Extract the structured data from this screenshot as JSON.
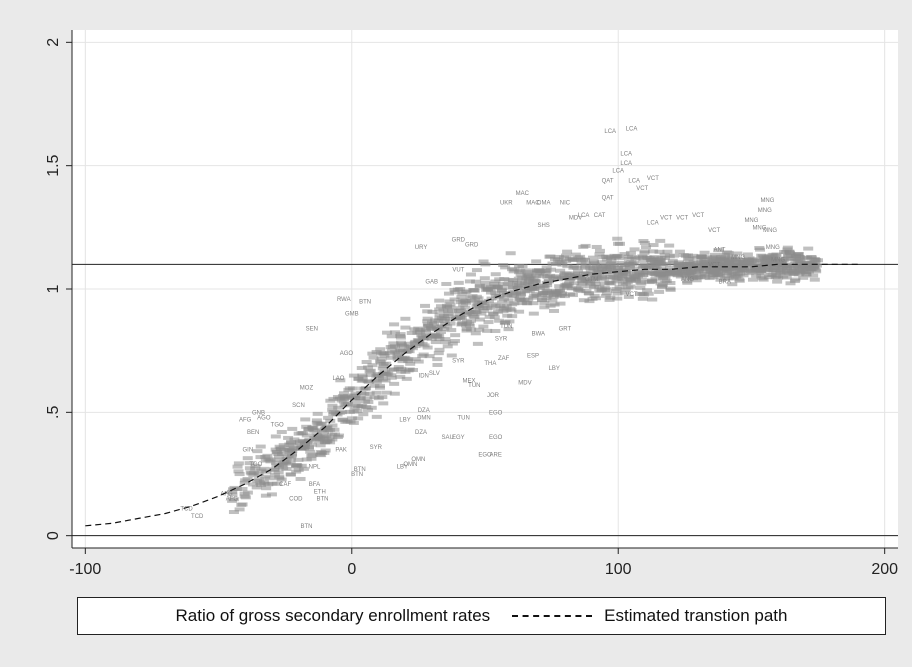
{
  "chart_data": {
    "type": "scatter",
    "title": "",
    "xlabel": "",
    "ylabel": "",
    "xlim": [
      -105,
      205
    ],
    "ylim": [
      -0.05,
      2.05
    ],
    "xticks": [
      -100,
      0,
      100,
      200
    ],
    "yticks": [
      0,
      0.5,
      1,
      1.5,
      2
    ],
    "xtick_labels": [
      "-100",
      "0",
      "100",
      "200"
    ],
    "ytick_labels": [
      "0",
      ".5",
      "1",
      "1.5",
      "2"
    ],
    "grid": true,
    "reference_lines_y": [
      0,
      1.1
    ],
    "legend": {
      "position": "bottom",
      "entries": [
        "Ratio of gross secondary enrollment rates",
        "Estimated transtion path"
      ]
    },
    "series": [
      {
        "name": "Ratio of gross secondary enrollment rates",
        "marker": "country-code",
        "color": "#7f7f7f",
        "points": [
          {
            "x": -62,
            "y": 0.11,
            "label": "TCD"
          },
          {
            "x": -58,
            "y": 0.08,
            "label": "TCD"
          },
          {
            "x": -45,
            "y": 0.15,
            "label": "AFG"
          },
          {
            "x": -47,
            "y": 0.17,
            "label": "AFG"
          },
          {
            "x": -40,
            "y": 0.47,
            "label": "AFG"
          },
          {
            "x": -35,
            "y": 0.5,
            "label": "GNB"
          },
          {
            "x": -33,
            "y": 0.48,
            "label": "AGO"
          },
          {
            "x": -37,
            "y": 0.42,
            "label": "BEN"
          },
          {
            "x": -39,
            "y": 0.35,
            "label": "GIN"
          },
          {
            "x": -36,
            "y": 0.29,
            "label": "TGO"
          },
          {
            "x": -28,
            "y": 0.45,
            "label": "TGO"
          },
          {
            "x": -17,
            "y": 0.6,
            "label": "MOZ"
          },
          {
            "x": -20,
            "y": 0.53,
            "label": "SCN"
          },
          {
            "x": -25,
            "y": 0.21,
            "label": "CAF"
          },
          {
            "x": -14,
            "y": 0.21,
            "label": "BFA"
          },
          {
            "x": -21,
            "y": 0.15,
            "label": "COD"
          },
          {
            "x": -12,
            "y": 0.18,
            "label": "ETH"
          },
          {
            "x": -14,
            "y": 0.28,
            "label": "NPL"
          },
          {
            "x": -11,
            "y": 0.15,
            "label": "BTN"
          },
          {
            "x": -17,
            "y": 0.04,
            "label": "BTN"
          },
          {
            "x": 2,
            "y": 0.25,
            "label": "BTN"
          },
          {
            "x": 3,
            "y": 0.27,
            "label": "BTN"
          },
          {
            "x": -4,
            "y": 0.35,
            "label": "PAK"
          },
          {
            "x": 9,
            "y": 0.36,
            "label": "SYR"
          },
          {
            "x": 19,
            "y": 0.28,
            "label": "LBY"
          },
          {
            "x": 22,
            "y": 0.29,
            "label": "OMN"
          },
          {
            "x": 25,
            "y": 0.31,
            "label": "OMN"
          },
          {
            "x": 20,
            "y": 0.47,
            "label": "LBY"
          },
          {
            "x": 27,
            "y": 0.48,
            "label": "OMN"
          },
          {
            "x": 26,
            "y": 0.42,
            "label": "DZA"
          },
          {
            "x": 27,
            "y": 0.51,
            "label": "DZA"
          },
          {
            "x": 36,
            "y": 0.4,
            "label": "SAU"
          },
          {
            "x": 40,
            "y": 0.4,
            "label": "EGY"
          },
          {
            "x": 42,
            "y": 0.48,
            "label": "TUN"
          },
          {
            "x": 54,
            "y": 0.4,
            "label": "EGO"
          },
          {
            "x": 50,
            "y": 0.33,
            "label": "EGO"
          },
          {
            "x": 54,
            "y": 0.33,
            "label": "ARE"
          },
          {
            "x": 54,
            "y": 0.5,
            "label": "EGO"
          },
          {
            "x": 53,
            "y": 0.57,
            "label": "JOR"
          },
          {
            "x": 65,
            "y": 0.62,
            "label": "MDV"
          },
          {
            "x": 44,
            "y": 0.63,
            "label": "MEX"
          },
          {
            "x": 46,
            "y": 0.61,
            "label": "TUN"
          },
          {
            "x": 52,
            "y": 0.7,
            "label": "THA"
          },
          {
            "x": 57,
            "y": 0.72,
            "label": "ZAF"
          },
          {
            "x": 68,
            "y": 0.73,
            "label": "ESP"
          },
          {
            "x": 76,
            "y": 0.68,
            "label": "LBY"
          },
          {
            "x": 70,
            "y": 0.82,
            "label": "BWA"
          },
          {
            "x": 31,
            "y": 0.66,
            "label": "SLV"
          },
          {
            "x": 27,
            "y": 0.65,
            "label": "IDN"
          },
          {
            "x": 40,
            "y": 0.71,
            "label": "SYR"
          },
          {
            "x": -2,
            "y": 0.74,
            "label": "AGO"
          },
          {
            "x": -5,
            "y": 0.64,
            "label": "LAO"
          },
          {
            "x": -15,
            "y": 0.84,
            "label": "SEN"
          },
          {
            "x": 5,
            "y": 0.95,
            "label": "BTN"
          },
          {
            "x": -3,
            "y": 0.96,
            "label": "RWA"
          },
          {
            "x": 0,
            "y": 0.9,
            "label": "GMB"
          },
          {
            "x": 30,
            "y": 1.03,
            "label": "GAB"
          },
          {
            "x": 40,
            "y": 1.08,
            "label": "VUT"
          },
          {
            "x": 26,
            "y": 1.17,
            "label": "URY"
          },
          {
            "x": 40,
            "y": 1.2,
            "label": "GRD"
          },
          {
            "x": 45,
            "y": 1.18,
            "label": "GRD"
          },
          {
            "x": 58,
            "y": 1.35,
            "label": "UKR"
          },
          {
            "x": 64,
            "y": 1.39,
            "label": "MAC"
          },
          {
            "x": 68,
            "y": 1.35,
            "label": "MAC"
          },
          {
            "x": 72,
            "y": 1.35,
            "label": "OMA"
          },
          {
            "x": 72,
            "y": 1.26,
            "label": "SHS"
          },
          {
            "x": 84,
            "y": 1.29,
            "label": "MDV"
          },
          {
            "x": 80,
            "y": 1.35,
            "label": "NIC"
          },
          {
            "x": 87,
            "y": 1.3,
            "label": "LCA"
          },
          {
            "x": 93,
            "y": 1.3,
            "label": "CAT"
          },
          {
            "x": 96,
            "y": 1.37,
            "label": "QAT"
          },
          {
            "x": 96,
            "y": 1.44,
            "label": "QAT"
          },
          {
            "x": 100,
            "y": 1.48,
            "label": "LCA"
          },
          {
            "x": 103,
            "y": 1.51,
            "label": "LCA"
          },
          {
            "x": 106,
            "y": 1.44,
            "label": "LCA"
          },
          {
            "x": 109,
            "y": 1.41,
            "label": "VCT"
          },
          {
            "x": 113,
            "y": 1.45,
            "label": "VCT"
          },
          {
            "x": 97,
            "y": 1.64,
            "label": "LCA"
          },
          {
            "x": 105,
            "y": 1.65,
            "label": "LCA"
          },
          {
            "x": 103,
            "y": 1.55,
            "label": "LCA"
          },
          {
            "x": 113,
            "y": 1.27,
            "label": "LCA"
          },
          {
            "x": 118,
            "y": 1.29,
            "label": "VCT"
          },
          {
            "x": 124,
            "y": 1.29,
            "label": "VCT"
          },
          {
            "x": 130,
            "y": 1.3,
            "label": "VCT"
          },
          {
            "x": 136,
            "y": 1.24,
            "label": "VCT"
          },
          {
            "x": 138,
            "y": 1.16,
            "label": "ANT"
          },
          {
            "x": 145,
            "y": 1.13,
            "label": "MNG"
          },
          {
            "x": 150,
            "y": 1.28,
            "label": "MNG"
          },
          {
            "x": 153,
            "y": 1.25,
            "label": "MNG"
          },
          {
            "x": 155,
            "y": 1.32,
            "label": "MNG"
          },
          {
            "x": 157,
            "y": 1.24,
            "label": "MNG"
          },
          {
            "x": 158,
            "y": 1.17,
            "label": "MNG"
          },
          {
            "x": 160,
            "y": 1.12,
            "label": "MNG"
          },
          {
            "x": 156,
            "y": 1.36,
            "label": "MNG"
          },
          {
            "x": 136,
            "y": 1.1,
            "label": "VCT"
          },
          {
            "x": 126,
            "y": 1.04,
            "label": "ANG"
          },
          {
            "x": 140,
            "y": 1.03,
            "label": "BRA"
          },
          {
            "x": 105,
            "y": 0.98,
            "label": "VCT"
          },
          {
            "x": 90,
            "y": 1.04,
            "label": "GTM"
          },
          {
            "x": 80,
            "y": 0.84,
            "label": "GRT"
          },
          {
            "x": 58,
            "y": 0.85,
            "label": "TUN"
          },
          {
            "x": 56,
            "y": 0.8,
            "label": "SYR"
          }
        ]
      },
      {
        "name": "Estimated transtion path",
        "line_style": "dashed",
        "color": "#111111",
        "x": [
          -100,
          -90,
          -80,
          -70,
          -60,
          -50,
          -40,
          -30,
          -20,
          -10,
          0,
          10,
          20,
          30,
          40,
          50,
          60,
          70,
          80,
          90,
          100,
          110,
          120,
          130,
          140,
          150,
          160,
          170,
          180,
          190
        ],
        "y": [
          0.04,
          0.05,
          0.07,
          0.09,
          0.12,
          0.16,
          0.21,
          0.27,
          0.35,
          0.44,
          0.55,
          0.65,
          0.74,
          0.82,
          0.89,
          0.95,
          0.99,
          1.02,
          1.04,
          1.06,
          1.07,
          1.08,
          1.08,
          1.09,
          1.09,
          1.09,
          1.1,
          1.1,
          1.1,
          1.1
        ]
      }
    ]
  }
}
